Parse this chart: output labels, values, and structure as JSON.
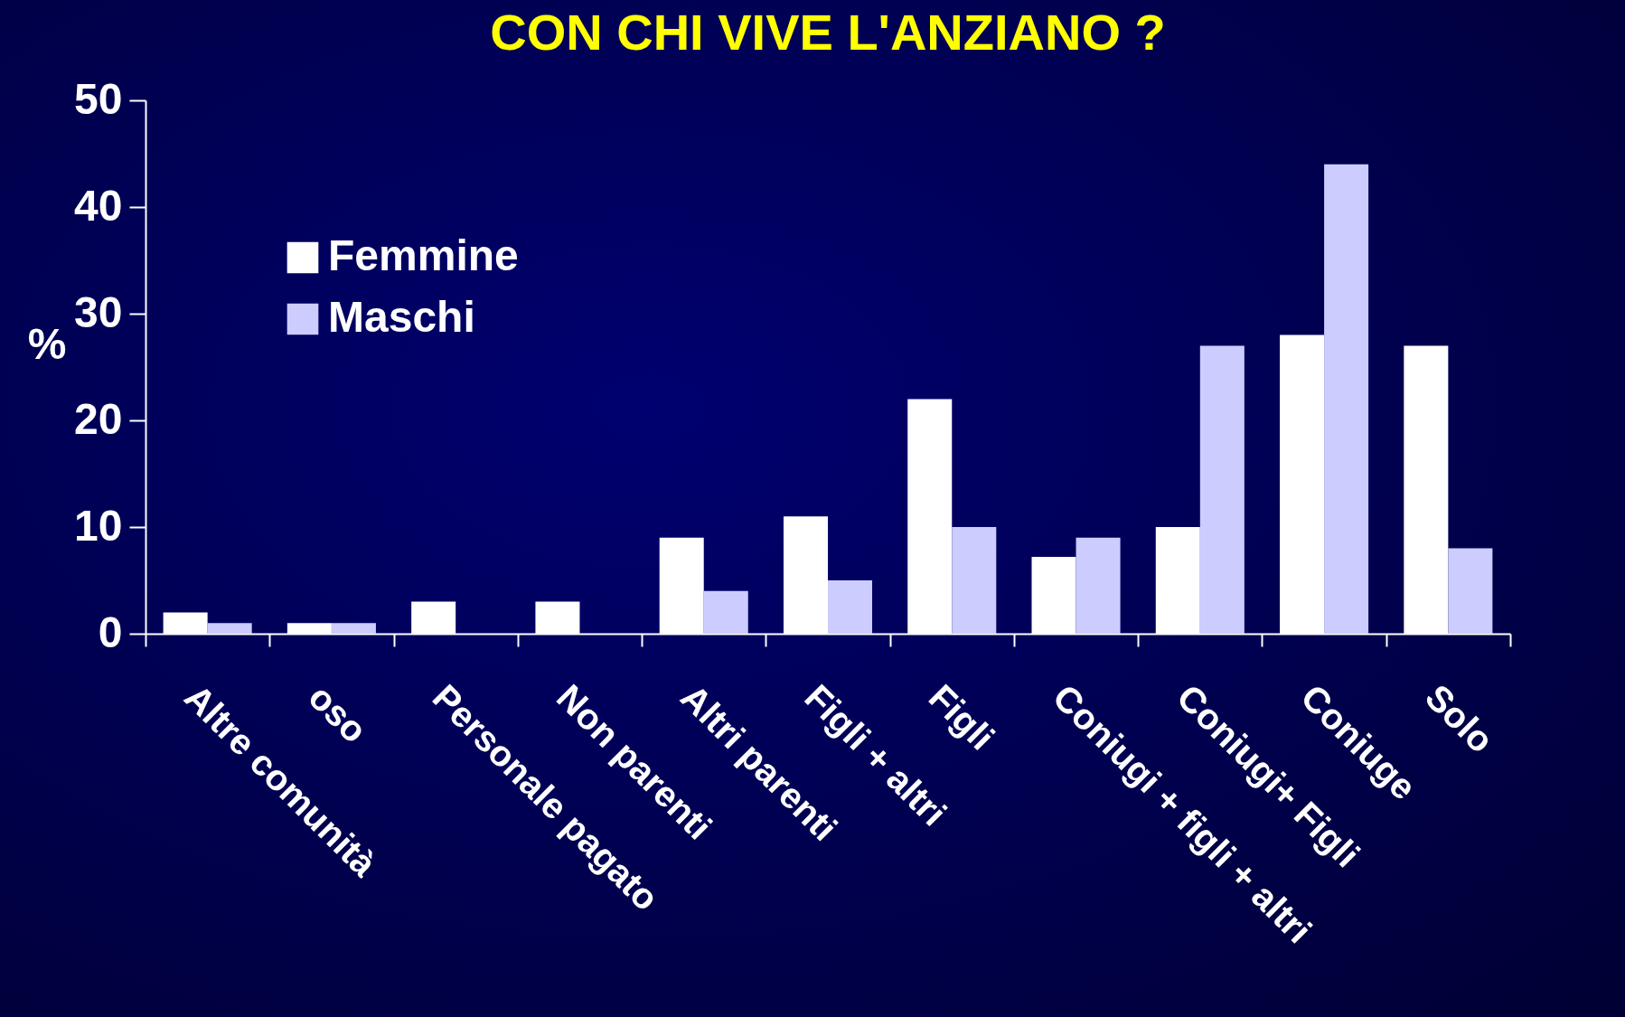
{
  "chart_data": {
    "type": "bar",
    "title": "CON CHI VIVE L'ANZIANO ?",
    "ylabel": "%",
    "categories": [
      "Altre comunità",
      "oso",
      "Personale pagato",
      "Non parenti",
      "Altri parenti",
      "Figli + altri",
      "Figli",
      "Coniugi + figli + altri",
      "Coniugi+ Figli",
      "Coniuge",
      "Solo"
    ],
    "series": [
      {
        "name": "Femmine",
        "color": "#ffffff",
        "values": [
          2,
          1,
          3,
          3,
          9,
          11,
          22,
          7.2,
          10,
          28,
          27
        ]
      },
      {
        "name": "Maschi",
        "color": "#ccccff",
        "values": [
          1,
          1,
          0,
          0,
          4,
          5,
          10,
          9,
          27,
          44,
          8
        ]
      }
    ],
    "ylim": [
      0,
      50
    ],
    "yticks": [
      0,
      10,
      20,
      30,
      40,
      50
    ],
    "grid": false,
    "legend": "top left"
  }
}
